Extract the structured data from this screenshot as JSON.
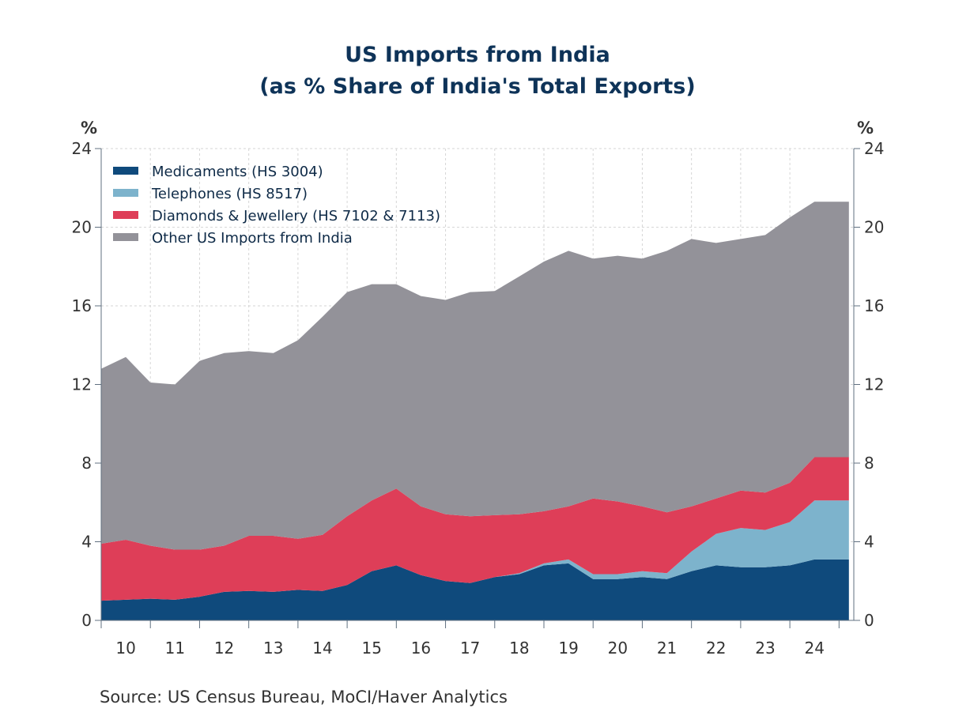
{
  "chart_data": {
    "type": "area",
    "stacked": true,
    "title": "US Imports from India",
    "subtitle": "(as % Share of India's Total Exports)",
    "ylabel_left": "%",
    "ylabel_right": "%",
    "ylim": [
      0,
      24
    ],
    "yticks": [
      0,
      4,
      8,
      12,
      16,
      20,
      24
    ],
    "xlim": [
      2010,
      2025.3
    ],
    "xticks": [
      "10",
      "11",
      "12",
      "13",
      "14",
      "15",
      "16",
      "17",
      "18",
      "19",
      "20",
      "21",
      "22",
      "23",
      "24"
    ],
    "grid": true,
    "legend_position": "top-left",
    "source": "Source:   US Census Bureau, MoCI/Haver Analytics",
    "x": [
      2010.0,
      2010.5,
      2011.0,
      2011.5,
      2012.0,
      2012.5,
      2013.0,
      2013.5,
      2014.0,
      2014.5,
      2015.0,
      2015.5,
      2016.0,
      2016.5,
      2017.0,
      2017.5,
      2018.0,
      2018.5,
      2019.0,
      2019.5,
      2020.0,
      2020.5,
      2021.0,
      2021.5,
      2022.0,
      2022.5,
      2023.0,
      2023.5,
      2024.0,
      2024.5,
      2024.75,
      2025.0,
      2025.2
    ],
    "series": [
      {
        "name": "Medicaments (HS 3004)",
        "color": "#0f4a7c",
        "values": [
          1.0,
          1.05,
          1.1,
          1.05,
          1.2,
          1.45,
          1.5,
          1.45,
          1.55,
          1.5,
          1.8,
          2.5,
          2.8,
          2.3,
          2.0,
          1.9,
          2.2,
          2.35,
          2.8,
          2.9,
          2.1,
          2.1,
          2.2,
          2.1,
          2.5,
          2.8,
          2.7,
          2.7,
          2.8,
          3.1,
          3.1,
          3.1,
          3.1
        ]
      },
      {
        "name": "Telephones (HS 8517)",
        "color": "#7db3cc",
        "values": [
          0.0,
          0.0,
          0.0,
          0.0,
          0.0,
          0.0,
          0.0,
          0.0,
          0.0,
          0.0,
          0.0,
          0.0,
          0.0,
          0.0,
          0.0,
          0.0,
          0.0,
          0.05,
          0.1,
          0.2,
          0.25,
          0.25,
          0.3,
          0.3,
          1.0,
          1.6,
          2.0,
          1.9,
          2.2,
          3.0,
          3.0,
          3.0,
          3.0
        ]
      },
      {
        "name": "Diamonds & Jewellery (HS 7102 & 7113)",
        "color": "#de3e58",
        "values": [
          2.9,
          3.05,
          2.7,
          2.55,
          2.4,
          2.35,
          2.8,
          2.85,
          2.6,
          2.85,
          3.5,
          3.6,
          3.9,
          3.5,
          3.4,
          3.4,
          3.15,
          3.0,
          2.65,
          2.7,
          3.85,
          3.7,
          3.3,
          3.1,
          2.3,
          1.8,
          1.9,
          1.9,
          2.0,
          2.2,
          2.2,
          2.2,
          2.2
        ]
      },
      {
        "name": "Other US Imports from India",
        "color": "#939299",
        "values": [
          8.9,
          9.3,
          8.3,
          8.4,
          9.6,
          9.8,
          9.4,
          9.3,
          10.1,
          11.1,
          11.4,
          11.0,
          10.4,
          10.7,
          10.9,
          11.4,
          11.4,
          12.1,
          12.7,
          13.0,
          12.2,
          12.5,
          12.6,
          13.3,
          13.6,
          13.0,
          12.8,
          13.1,
          13.5,
          13.0,
          13.0,
          13.0,
          13.0
        ]
      }
    ]
  }
}
